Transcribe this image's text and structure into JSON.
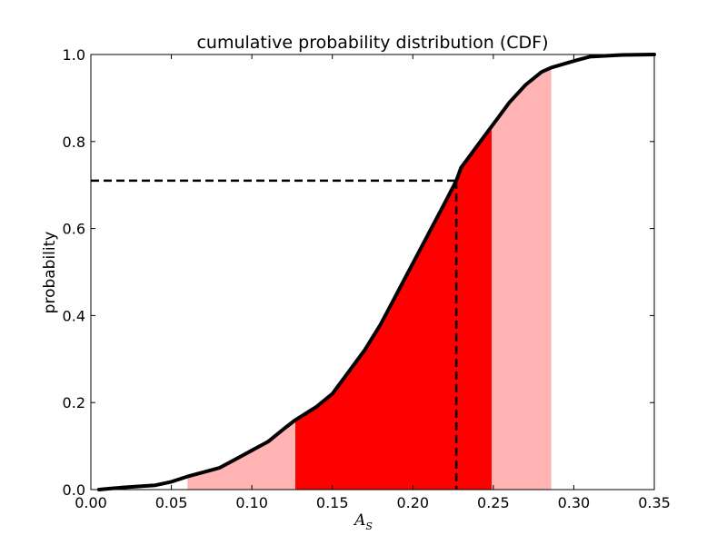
{
  "chart_data": {
    "type": "area",
    "title": "cumulative probability distribution (CDF)",
    "xlabel": "A",
    "xlabel_subscript": "S",
    "ylabel": "probability",
    "xlim": [
      0.0,
      0.35
    ],
    "ylim": [
      0.0,
      1.0
    ],
    "x_ticks": [
      0.0,
      0.05,
      0.1,
      0.15,
      0.2,
      0.25,
      0.3,
      0.35
    ],
    "y_ticks": [
      0.0,
      0.2,
      0.4,
      0.6,
      0.8,
      1.0
    ],
    "x_tick_labels": [
      "0.00",
      "0.05",
      "0.10",
      "0.15",
      "0.20",
      "0.25",
      "0.30",
      "0.35"
    ],
    "y_tick_labels": [
      "0.0",
      "0.2",
      "0.4",
      "0.6",
      "0.8",
      "1.0"
    ],
    "grid": false,
    "cdf_curve": {
      "color": "#000000",
      "x": [
        0.005,
        0.02,
        0.04,
        0.05,
        0.06,
        0.07,
        0.08,
        0.09,
        0.1,
        0.11,
        0.12,
        0.127,
        0.14,
        0.15,
        0.16,
        0.17,
        0.18,
        0.19,
        0.2,
        0.21,
        0.22,
        0.227,
        0.23,
        0.24,
        0.25,
        0.26,
        0.27,
        0.28,
        0.286,
        0.3,
        0.31,
        0.33,
        0.35
      ],
      "y": [
        0.0,
        0.005,
        0.01,
        0.018,
        0.03,
        0.04,
        0.05,
        0.07,
        0.09,
        0.11,
        0.14,
        0.16,
        0.19,
        0.22,
        0.27,
        0.32,
        0.38,
        0.45,
        0.52,
        0.59,
        0.66,
        0.71,
        0.74,
        0.79,
        0.84,
        0.89,
        0.93,
        0.96,
        0.97,
        0.985,
        0.995,
        0.999,
        1.0
      ]
    },
    "shaded_regions": [
      {
        "from": 0.06,
        "to": 0.127,
        "color": "#ffb3b3"
      },
      {
        "from": 0.127,
        "to": 0.249,
        "color": "#ff0000"
      },
      {
        "from": 0.249,
        "to": 0.286,
        "color": "#ffb3b3"
      }
    ],
    "reference_lines": {
      "x_value": 0.227,
      "y_value": 0.71,
      "style": "dashed",
      "color": "#000000"
    }
  }
}
